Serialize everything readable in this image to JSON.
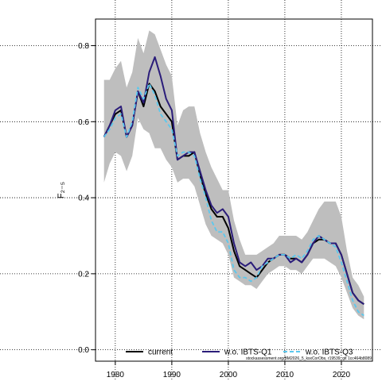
{
  "chart_data": {
    "type": "line",
    "ylabel": "F₂₋₅",
    "xlim": [
      1976.5,
      2025.5
    ],
    "ylim": [
      -0.03,
      0.87
    ],
    "grid": true,
    "grid_x": [
      1980,
      1990,
      2000,
      2010,
      2020
    ],
    "grid_y": [
      0.0,
      0.2,
      0.4,
      0.6,
      0.8
    ],
    "x_ticks": [
      1980,
      1990,
      2000,
      2010,
      2020
    ],
    "y_ticks": [
      "0.0",
      "0.2",
      "0.4",
      "0.6",
      "0.8"
    ],
    "legend_position": "bottom",
    "footnote": "stockassessment.org/BM2026_5_ksxCorObs, r19539, git 1cc464b8089",
    "x": [
      1978,
      1979,
      1980,
      1981,
      1982,
      1983,
      1984,
      1985,
      1986,
      1987,
      1988,
      1989,
      1990,
      1991,
      1992,
      1993,
      1994,
      1995,
      1996,
      1997,
      1998,
      1999,
      2000,
      2001,
      2002,
      2003,
      2004,
      2005,
      2006,
      2007,
      2008,
      2009,
      2010,
      2011,
      2012,
      2013,
      2014,
      2015,
      2016,
      2017,
      2018,
      2019,
      2020,
      2021,
      2022,
      2023,
      2024
    ],
    "band": {
      "color": "#bebebe",
      "lower": [
        0.44,
        0.49,
        0.52,
        0.51,
        0.47,
        0.51,
        0.61,
        0.58,
        0.57,
        0.53,
        0.53,
        0.5,
        0.48,
        0.44,
        0.45,
        0.45,
        0.43,
        0.38,
        0.33,
        0.3,
        0.29,
        0.28,
        0.25,
        0.19,
        0.18,
        0.17,
        0.17,
        0.16,
        0.18,
        0.2,
        0.21,
        0.22,
        0.22,
        0.21,
        0.21,
        0.2,
        0.22,
        0.24,
        0.24,
        0.24,
        0.23,
        0.22,
        0.19,
        0.15,
        0.11,
        0.09,
        0.08
      ],
      "upper": [
        0.71,
        0.71,
        0.74,
        0.76,
        0.69,
        0.73,
        0.82,
        0.78,
        0.84,
        0.83,
        0.79,
        0.75,
        0.72,
        0.59,
        0.63,
        0.64,
        0.64,
        0.57,
        0.52,
        0.48,
        0.45,
        0.42,
        0.42,
        0.34,
        0.29,
        0.25,
        0.25,
        0.25,
        0.26,
        0.27,
        0.28,
        0.3,
        0.3,
        0.3,
        0.3,
        0.29,
        0.31,
        0.34,
        0.37,
        0.39,
        0.39,
        0.39,
        0.35,
        0.26,
        0.19,
        0.17,
        0.14
      ]
    },
    "series": [
      {
        "name": "current",
        "color": "#000000",
        "dash": "solid",
        "values": [
          0.56,
          0.59,
          0.62,
          0.63,
          0.56,
          0.59,
          0.68,
          0.64,
          0.7,
          0.68,
          0.64,
          0.62,
          0.6,
          0.5,
          0.51,
          0.51,
          0.52,
          0.46,
          0.41,
          0.37,
          0.35,
          0.35,
          0.32,
          0.26,
          0.22,
          0.21,
          0.2,
          0.19,
          0.21,
          0.23,
          0.24,
          0.25,
          0.25,
          0.24,
          0.24,
          0.23,
          0.25,
          0.28,
          0.29,
          0.29,
          0.28,
          0.28,
          0.25,
          0.2,
          0.15,
          0.13,
          0.12
        ]
      },
      {
        "name": "w.o. IBTS-Q1",
        "color": "#2b1d7a",
        "dash": "solid",
        "values": [
          0.56,
          0.59,
          0.63,
          0.64,
          0.56,
          0.59,
          0.68,
          0.65,
          0.73,
          0.77,
          0.72,
          0.66,
          0.63,
          0.5,
          0.51,
          0.52,
          0.52,
          0.47,
          0.42,
          0.38,
          0.36,
          0.37,
          0.35,
          0.28,
          0.23,
          0.22,
          0.23,
          0.21,
          0.22,
          0.24,
          0.24,
          0.25,
          0.25,
          0.23,
          0.24,
          0.23,
          0.25,
          0.28,
          0.3,
          0.29,
          0.28,
          0.28,
          0.25,
          0.2,
          0.15,
          0.13,
          0.12
        ]
      },
      {
        "name": "w.o. IBTS-Q3",
        "color": "#5bc8ee",
        "dash": "dashed",
        "values": [
          0.56,
          0.58,
          0.61,
          0.62,
          0.56,
          0.6,
          0.69,
          0.66,
          0.7,
          0.67,
          0.62,
          0.6,
          0.58,
          0.51,
          0.52,
          0.52,
          0.51,
          0.45,
          0.4,
          0.34,
          0.31,
          0.31,
          0.28,
          0.21,
          0.19,
          0.19,
          0.18,
          0.19,
          0.22,
          0.23,
          0.24,
          0.25,
          0.25,
          0.24,
          0.25,
          0.24,
          0.26,
          0.29,
          0.3,
          0.29,
          0.28,
          0.27,
          0.23,
          0.18,
          0.13,
          0.1,
          0.09
        ]
      }
    ]
  }
}
